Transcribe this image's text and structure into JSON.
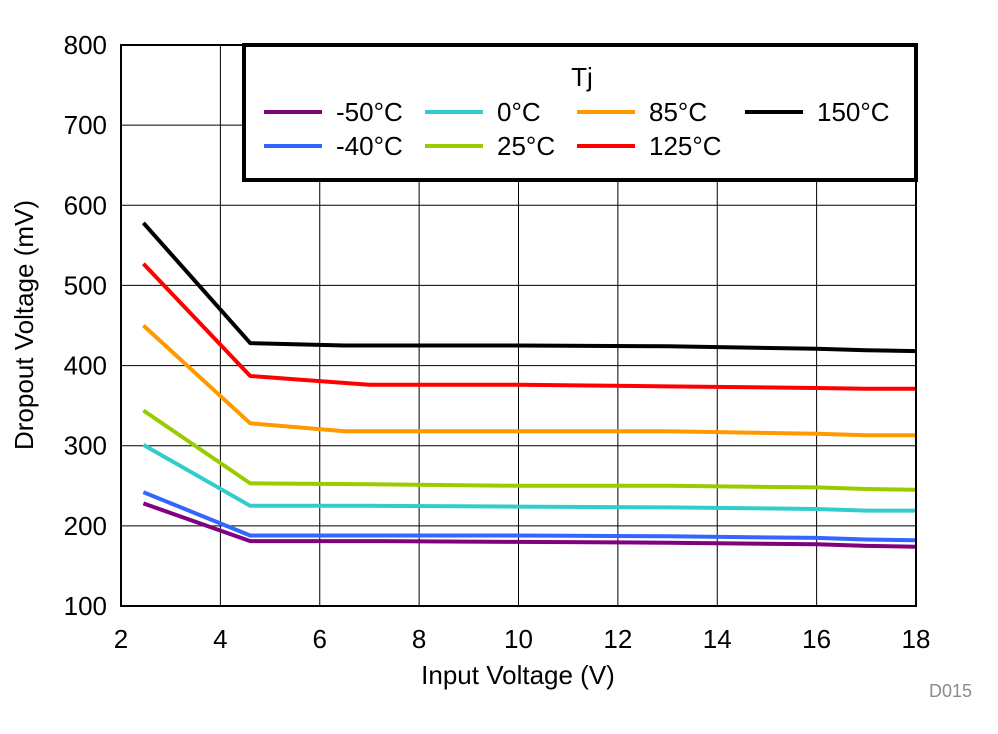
{
  "chart_data": {
    "type": "line",
    "title": "",
    "xlabel": "Input Voltage (V)",
    "ylabel": "Dropout Voltage (mV)",
    "xlim": [
      2,
      18
    ],
    "ylim": [
      100,
      800
    ],
    "xticks": [
      2,
      4,
      6,
      8,
      10,
      12,
      14,
      16,
      18
    ],
    "yticks": [
      100,
      200,
      300,
      400,
      500,
      600,
      700,
      800
    ],
    "grid": true,
    "legend_title": "Tj",
    "legend_position": "top-right",
    "figure_id": "D015",
    "series": [
      {
        "name": "-50°C",
        "color": "#800080",
        "x": [
          2.45,
          4.6,
          7,
          10,
          13,
          16,
          17,
          18
        ],
        "y": [
          228,
          181,
          181,
          180,
          179,
          177,
          175,
          174
        ]
      },
      {
        "name": "-40°C",
        "color": "#3366ff",
        "x": [
          2.45,
          4.6,
          7,
          10,
          13,
          16,
          17,
          18
        ],
        "y": [
          242,
          188,
          188,
          188,
          187,
          185,
          183,
          182
        ]
      },
      {
        "name": "0°C",
        "color": "#33cccc",
        "x": [
          2.45,
          4.6,
          7,
          10,
          13,
          16,
          17,
          18
        ],
        "y": [
          301,
          225,
          225,
          224,
          223,
          221,
          219,
          219
        ]
      },
      {
        "name": "25°C",
        "color": "#99cc00",
        "x": [
          2.45,
          4.6,
          7,
          10,
          13,
          16,
          17,
          18
        ],
        "y": [
          344,
          253,
          252,
          250,
          250,
          248,
          246,
          245
        ]
      },
      {
        "name": "85°C",
        "color": "#ff9900",
        "x": [
          2.45,
          4.6,
          6.5,
          10,
          13,
          16,
          17,
          18
        ],
        "y": [
          450,
          328,
          318,
          318,
          318,
          315,
          313,
          313
        ]
      },
      {
        "name": "125°C",
        "color": "#ff0000",
        "x": [
          2.45,
          4.6,
          7,
          10,
          13,
          16,
          17,
          18
        ],
        "y": [
          527,
          387,
          376,
          376,
          374,
          372,
          371,
          371
        ]
      },
      {
        "name": "150°C",
        "color": "#000000",
        "x": [
          2.45,
          4.6,
          6.5,
          10,
          13,
          16,
          17,
          18
        ],
        "y": [
          578,
          428,
          425,
          425,
          424,
          421,
          419,
          418
        ]
      }
    ]
  }
}
